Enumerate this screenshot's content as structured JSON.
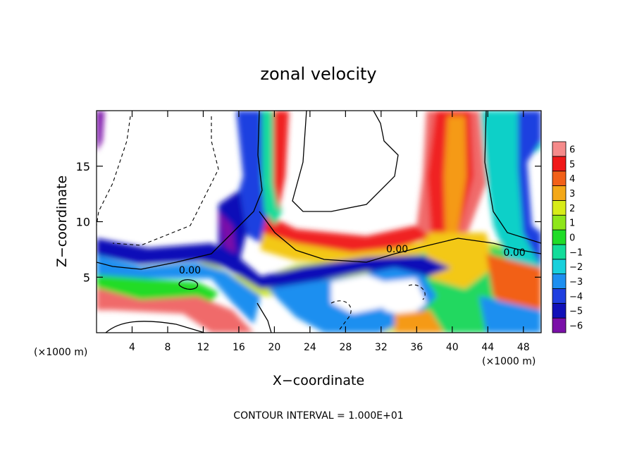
{
  "chart_data": {
    "type": "heatmap",
    "title": "zonal velocity",
    "xlabel": "X−coordinate",
    "ylabel": "Z−coordinate",
    "x_unit_left": "(×1000 m)",
    "x_unit_right": "(×1000 m)",
    "footer": "CONTOUR INTERVAL = 1.000E+01",
    "xlim": [
      0,
      50
    ],
    "ylim": [
      0,
      20
    ],
    "x_ticks": [
      4,
      8,
      12,
      16,
      20,
      24,
      28,
      32,
      36,
      40,
      44,
      48
    ],
    "y_ticks": [
      5,
      10,
      15
    ],
    "colorbar": {
      "levels": [
        -6,
        -5,
        -4,
        -3,
        -2,
        -1,
        0,
        1,
        2,
        3,
        4,
        5,
        6
      ],
      "labels": [
        "−6",
        "−5",
        "−4",
        "−3",
        "−2",
        "−1",
        "0",
        "1",
        "2",
        "3",
        "4",
        "5",
        "6"
      ],
      "colors": [
        "#7a10a8",
        "#1010b8",
        "#1f3fe0",
        "#1d8ff0",
        "#18d0dc",
        "#12dc9a",
        "#20dc28",
        "#8ee61a",
        "#d8ec18",
        "#f3a818",
        "#f26018",
        "#f01818",
        "#f58a8a"
      ]
    },
    "contour_labels": [
      {
        "text": "0.00",
        "x": 10.5,
        "z": 5.4
      },
      {
        "text": "0.00",
        "x": 33.8,
        "z": 7.3
      },
      {
        "text": "0.00",
        "x": 47.0,
        "z": 7.0
      }
    ],
    "features": [
      {
        "desc": "positive jet",
        "x": [
          39,
          43
        ],
        "z": [
          0.5,
          19.8
        ],
        "value": 6
      },
      {
        "desc": "negative band",
        "x": [
          14,
          20
        ],
        "z": [
          0,
          20
        ],
        "value": -5
      },
      {
        "desc": "positive shelf",
        "x": [
          18,
          42
        ],
        "z": [
          7,
          10
        ],
        "value": 5
      },
      {
        "desc": "negative layer",
        "x": [
          0,
          20
        ],
        "z": [
          6,
          8
        ],
        "value": -5
      }
    ]
  }
}
